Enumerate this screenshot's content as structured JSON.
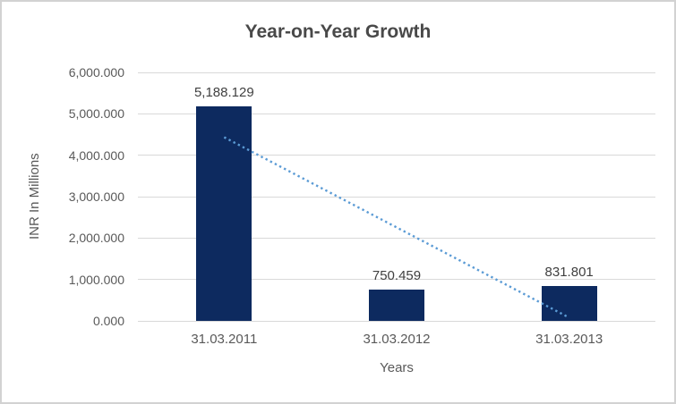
{
  "chart_data": {
    "type": "bar",
    "title": "Year-on-Year Growth",
    "xlabel": "Years",
    "ylabel": "INR In Millions",
    "categories": [
      "31.03.2011",
      "31.03.2012",
      "31.03.2013"
    ],
    "values": [
      5188.129,
      750.459,
      831.801
    ],
    "value_labels": [
      "5,188.129",
      "750.459",
      "831.801"
    ],
    "ylim": [
      0,
      6000
    ],
    "ytick_step": 1000,
    "ytick_labels": [
      "0.000",
      "1,000.000",
      "2,000.000",
      "3,000.000",
      "4,000.000",
      "5,000.000",
      "6,000.000"
    ],
    "grid": true,
    "legend": false,
    "trendline": {
      "type": "linear",
      "style": "dotted",
      "start_value": 4435,
      "end_value": 79
    },
    "colors": {
      "bar": "#0d2a5f",
      "trendline": "#5b9bd5",
      "gridline": "#d9d9d9",
      "title_text": "#494949",
      "tick_text": "#595959",
      "value_label_text": "#404040",
      "frame_border": "#d2d2d2"
    }
  }
}
